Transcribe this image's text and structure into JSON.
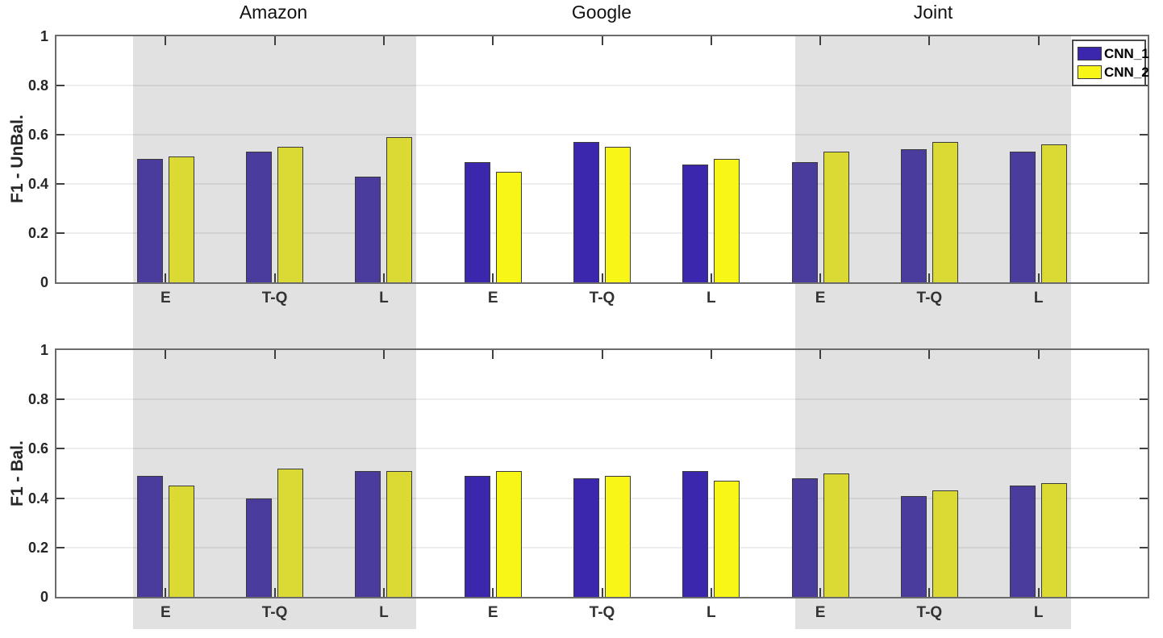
{
  "figure_titles": [
    "Amazon",
    "Google",
    "Joint"
  ],
  "legend": {
    "entries": [
      {
        "label": "CNN_1",
        "color": "#3B27AE",
        "color_shaded": "#4A3C9D"
      },
      {
        "label": "CNN_2",
        "color": "#F8F616",
        "color_shaded": "#DBD934"
      }
    ]
  },
  "axis": {
    "yticks": [
      0,
      0.2,
      0.4,
      0.6,
      0.8,
      1
    ],
    "yticklabels": [
      "0",
      "0.2",
      "0.4",
      "0.6",
      "0.8",
      "1"
    ],
    "ylim": [
      0,
      1
    ],
    "grid": "horizontal"
  },
  "colors": {
    "band": "#E1E1E1",
    "axis_border": "#6B6B6B",
    "grid": "rgba(0,0,0,0.07)",
    "tick": "#404040",
    "bar_edge": "#3A3A3A",
    "text": "#262626"
  },
  "chart_data": [
    {
      "type": "bar",
      "ylabel": "F1 - UnBal.",
      "ylim": [
        0,
        1
      ],
      "legend_position": "top-right",
      "groups": [
        {
          "name": "Amazon",
          "shaded": true,
          "categories": [
            "E",
            "T-Q",
            "L"
          ],
          "series": [
            {
              "name": "CNN_1",
              "values": [
                0.5,
                0.53,
                0.43
              ]
            },
            {
              "name": "CNN_2",
              "values": [
                0.51,
                0.55,
                0.59
              ]
            }
          ]
        },
        {
          "name": "Google",
          "shaded": false,
          "categories": [
            "E",
            "T-Q",
            "L"
          ],
          "series": [
            {
              "name": "CNN_1",
              "values": [
                0.49,
                0.57,
                0.48
              ]
            },
            {
              "name": "CNN_2",
              "values": [
                0.45,
                0.55,
                0.5
              ]
            }
          ]
        },
        {
          "name": "Joint",
          "shaded": true,
          "categories": [
            "E",
            "T-Q",
            "L"
          ],
          "series": [
            {
              "name": "CNN_1",
              "values": [
                0.49,
                0.54,
                0.53
              ]
            },
            {
              "name": "CNN_2",
              "values": [
                0.53,
                0.57,
                0.56
              ]
            }
          ]
        }
      ]
    },
    {
      "type": "bar",
      "ylabel": "F1 - Bal.",
      "ylim": [
        0,
        1
      ],
      "groups": [
        {
          "name": "Amazon",
          "shaded": true,
          "categories": [
            "E",
            "T-Q",
            "L"
          ],
          "series": [
            {
              "name": "CNN_1",
              "values": [
                0.49,
                0.4,
                0.51
              ]
            },
            {
              "name": "CNN_2",
              "values": [
                0.45,
                0.52,
                0.51
              ]
            }
          ]
        },
        {
          "name": "Google",
          "shaded": false,
          "categories": [
            "E",
            "T-Q",
            "L"
          ],
          "series": [
            {
              "name": "CNN_1",
              "values": [
                0.49,
                0.48,
                0.51
              ]
            },
            {
              "name": "CNN_2",
              "values": [
                0.51,
                0.49,
                0.47
              ]
            }
          ]
        },
        {
          "name": "Joint",
          "shaded": true,
          "categories": [
            "E",
            "T-Q",
            "L"
          ],
          "series": [
            {
              "name": "CNN_1",
              "values": [
                0.48,
                0.41,
                0.45
              ]
            },
            {
              "name": "CNN_2",
              "values": [
                0.5,
                0.43,
                0.46
              ]
            }
          ]
        }
      ]
    }
  ]
}
